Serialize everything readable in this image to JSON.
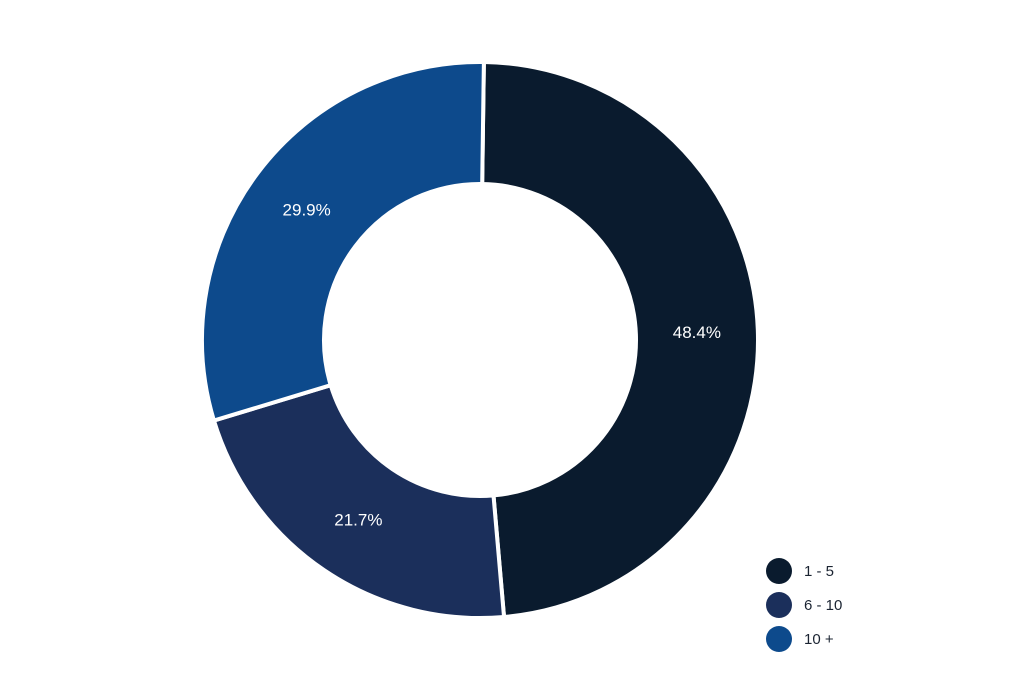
{
  "chart_data": {
    "type": "pie",
    "variant": "donut",
    "title": "",
    "categories": [
      "1 - 5",
      "6 - 10",
      "10 +"
    ],
    "values": [
      48.4,
      21.7,
      29.9
    ],
    "labels": [
      "48.4%",
      "21.7%",
      "29.9%"
    ],
    "colors": [
      "#0a1b2e",
      "#1b2f5b",
      "#0d4a8c"
    ],
    "legend": {
      "placement": "bottom-right",
      "items": [
        {
          "label": "1 - 5",
          "color": "#0a1b2e"
        },
        {
          "label": "6 - 10",
          "color": "#1b2f5b"
        },
        {
          "label": "10 +",
          "color": "#0d4a8c"
        }
      ]
    }
  }
}
